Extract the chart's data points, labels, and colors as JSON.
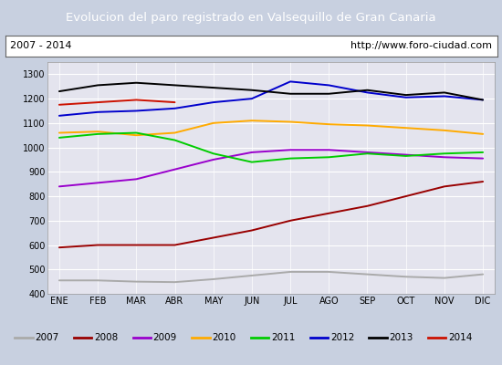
{
  "title": "Evolucion del paro registrado en Valsequillo de Gran Canaria",
  "title_color": "#ffffff",
  "title_bg": "#4472c4",
  "subtitle_left": "2007 - 2014",
  "subtitle_right": "http://www.foro-ciudad.com",
  "x_labels": [
    "ENE",
    "FEB",
    "MAR",
    "ABR",
    "MAY",
    "JUN",
    "JUL",
    "AGO",
    "SEP",
    "OCT",
    "NOV",
    "DIC"
  ],
  "ylim": [
    400,
    1350
  ],
  "yticks": [
    400,
    500,
    600,
    700,
    800,
    900,
    1000,
    1100,
    1200,
    1300
  ],
  "series": {
    "2007": {
      "color": "#aaaaaa",
      "data": [
        455,
        455,
        450,
        448,
        460,
        475,
        490,
        490,
        480,
        470,
        465,
        480
      ]
    },
    "2008": {
      "color": "#990000",
      "data": [
        590,
        600,
        600,
        600,
        630,
        660,
        700,
        730,
        760,
        800,
        840,
        860
      ]
    },
    "2009": {
      "color": "#9900cc",
      "data": [
        840,
        855,
        870,
        910,
        950,
        980,
        990,
        990,
        980,
        970,
        960,
        955
      ]
    },
    "2010": {
      "color": "#ffaa00",
      "data": [
        1060,
        1065,
        1050,
        1060,
        1100,
        1110,
        1105,
        1095,
        1090,
        1080,
        1070,
        1055
      ]
    },
    "2011": {
      "color": "#00cc00",
      "data": [
        1040,
        1055,
        1060,
        1030,
        975,
        940,
        955,
        960,
        975,
        965,
        975,
        980
      ]
    },
    "2012": {
      "color": "#0000cc",
      "data": [
        1130,
        1145,
        1150,
        1160,
        1185,
        1200,
        1270,
        1255,
        1225,
        1205,
        1210,
        1195
      ]
    },
    "2013": {
      "color": "#000000",
      "data": [
        1230,
        1255,
        1265,
        1255,
        1245,
        1235,
        1220,
        1220,
        1235,
        1215,
        1225,
        1195
      ]
    },
    "2014": {
      "color": "#cc1100",
      "data": [
        1175,
        1185,
        1195,
        1185,
        null,
        null,
        null,
        null,
        null,
        null,
        null,
        null
      ]
    }
  },
  "years_order": [
    "2007",
    "2008",
    "2009",
    "2010",
    "2011",
    "2012",
    "2013",
    "2014"
  ]
}
